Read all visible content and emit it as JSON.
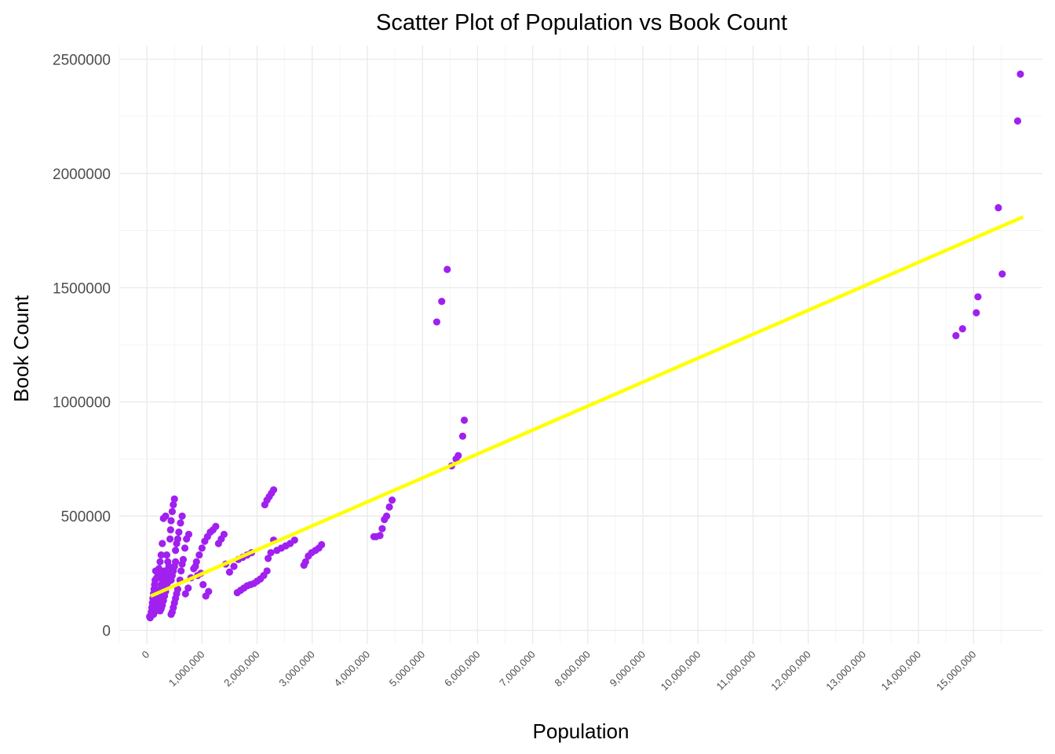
{
  "chart_data": {
    "type": "scatter",
    "title": "Scatter Plot of Population vs Book Count",
    "xlabel": "Population",
    "ylabel": "Book Count",
    "xlim": [
      -500000,
      16250000
    ],
    "ylim": [
      -60000,
      2560000
    ],
    "x_ticks": [
      {
        "value": 0,
        "label": "0"
      },
      {
        "value": 1000000,
        "label": "1,000,000"
      },
      {
        "value": 2000000,
        "label": "2,000,000"
      },
      {
        "value": 3000000,
        "label": "3,000,000"
      },
      {
        "value": 4000000,
        "label": "4,000,000"
      },
      {
        "value": 5000000,
        "label": "5,000,000"
      },
      {
        "value": 6000000,
        "label": "6,000,000"
      },
      {
        "value": 7000000,
        "label": "7,000,000"
      },
      {
        "value": 8000000,
        "label": "8,000,000"
      },
      {
        "value": 9000000,
        "label": "9,000,000"
      },
      {
        "value": 10000000,
        "label": "10,000,000"
      },
      {
        "value": 11000000,
        "label": "11,000,000"
      },
      {
        "value": 12000000,
        "label": "12,000,000"
      },
      {
        "value": 13000000,
        "label": "13,000,000"
      },
      {
        "value": 14000000,
        "label": "14,000,000"
      },
      {
        "value": 15000000,
        "label": "15,000,000"
      }
    ],
    "y_ticks": [
      {
        "value": 0,
        "label": "0"
      },
      {
        "value": 500000,
        "label": "500000"
      },
      {
        "value": 1000000,
        "label": "1000000"
      },
      {
        "value": 1500000,
        "label": "1500000"
      },
      {
        "value": 2000000,
        "label": "2000000"
      },
      {
        "value": 2500000,
        "label": "2500000"
      }
    ],
    "grid": true,
    "legend": "none",
    "point_color": "#a020f0",
    "fit_line_color": "#ffff00",
    "fit_line": {
      "x": [
        70000,
        15900000
      ],
      "y": [
        150000,
        1810000
      ]
    },
    "series": [
      {
        "points": [
          [
            5260000,
            1350000
          ],
          [
            5350000,
            1440000
          ],
          [
            5450000,
            1580000
          ],
          [
            5760000,
            920000
          ],
          [
            5730000,
            850000
          ],
          [
            5650000,
            765000
          ],
          [
            5610000,
            750000
          ],
          [
            5530000,
            720000
          ],
          [
            14680000,
            1290000
          ],
          [
            14800000,
            1320000
          ],
          [
            15050000,
            1390000
          ],
          [
            15080000,
            1460000
          ],
          [
            15450000,
            1850000
          ],
          [
            15520000,
            1560000
          ],
          [
            15800000,
            2230000
          ],
          [
            15850000,
            2435000
          ],
          [
            4450000,
            570000
          ],
          [
            4400000,
            540000
          ],
          [
            4350000,
            500000
          ],
          [
            4310000,
            485000
          ],
          [
            4270000,
            445000
          ],
          [
            4230000,
            415000
          ],
          [
            4160000,
            410000
          ],
          [
            4120000,
            410000
          ],
          [
            3170000,
            375000
          ],
          [
            3120000,
            360000
          ],
          [
            3060000,
            350000
          ],
          [
            2990000,
            340000
          ],
          [
            2930000,
            325000
          ],
          [
            2880000,
            300000
          ],
          [
            2850000,
            285000
          ],
          [
            2300000,
            615000
          ],
          [
            2260000,
            600000
          ],
          [
            2220000,
            585000
          ],
          [
            2180000,
            570000
          ],
          [
            2140000,
            550000
          ],
          [
            2680000,
            395000
          ],
          [
            2600000,
            380000
          ],
          [
            2520000,
            370000
          ],
          [
            2440000,
            360000
          ],
          [
            2360000,
            350000
          ],
          [
            2300000,
            395000
          ],
          [
            2250000,
            340000
          ],
          [
            2200000,
            315000
          ],
          [
            2180000,
            260000
          ],
          [
            2120000,
            240000
          ],
          [
            2060000,
            225000
          ],
          [
            2000000,
            215000
          ],
          [
            1940000,
            205000
          ],
          [
            1880000,
            200000
          ],
          [
            1820000,
            195000
          ],
          [
            1760000,
            185000
          ],
          [
            1700000,
            175000
          ],
          [
            1640000,
            165000
          ],
          [
            1900000,
            340000
          ],
          [
            1820000,
            330000
          ],
          [
            1740000,
            320000
          ],
          [
            1660000,
            310000
          ],
          [
            1580000,
            280000
          ],
          [
            1500000,
            255000
          ],
          [
            1430000,
            290000
          ],
          [
            1400000,
            420000
          ],
          [
            1350000,
            400000
          ],
          [
            1300000,
            380000
          ],
          [
            1250000,
            455000
          ],
          [
            1200000,
            440000
          ],
          [
            1150000,
            430000
          ],
          [
            1100000,
            410000
          ],
          [
            1050000,
            390000
          ],
          [
            1000000,
            360000
          ],
          [
            950000,
            330000
          ],
          [
            900000,
            300000
          ],
          [
            850000,
            270000
          ],
          [
            800000,
            230000
          ],
          [
            750000,
            185000
          ],
          [
            700000,
            160000
          ],
          [
            1120000,
            170000
          ],
          [
            1070000,
            150000
          ],
          [
            1020000,
            200000
          ],
          [
            980000,
            250000
          ],
          [
            920000,
            240000
          ],
          [
            880000,
            280000
          ],
          [
            640000,
            500000
          ],
          [
            610000,
            470000
          ],
          [
            580000,
            430000
          ],
          [
            560000,
            400000
          ],
          [
            540000,
            380000
          ],
          [
            520000,
            350000
          ],
          [
            760000,
            420000
          ],
          [
            720000,
            400000
          ],
          [
            690000,
            360000
          ],
          [
            660000,
            310000
          ],
          [
            640000,
            290000
          ],
          [
            620000,
            260000
          ],
          [
            600000,
            220000
          ],
          [
            500000,
            575000
          ],
          [
            480000,
            550000
          ],
          [
            460000,
            520000
          ],
          [
            440000,
            480000
          ],
          [
            430000,
            440000
          ],
          [
            420000,
            400000
          ],
          [
            420000,
            250000
          ],
          [
            400000,
            230000
          ],
          [
            380000,
            210000
          ],
          [
            360000,
            190000
          ],
          [
            340000,
            170000
          ],
          [
            320000,
            150000
          ],
          [
            300000,
            130000
          ],
          [
            280000,
            110000
          ],
          [
            260000,
            95000
          ],
          [
            240000,
            85000
          ],
          [
            340000,
            500000
          ],
          [
            300000,
            490000
          ],
          [
            280000,
            380000
          ],
          [
            260000,
            330000
          ],
          [
            240000,
            300000
          ],
          [
            220000,
            270000
          ],
          [
            200000,
            250000
          ],
          [
            180000,
            230000
          ],
          [
            160000,
            260000
          ],
          [
            150000,
            220000
          ],
          [
            140000,
            200000
          ],
          [
            130000,
            180000
          ],
          [
            120000,
            160000
          ],
          [
            110000,
            140000
          ],
          [
            100000,
            120000
          ],
          [
            90000,
            100000
          ],
          [
            80000,
            80000
          ],
          [
            70000,
            65000
          ],
          [
            60000,
            55000
          ],
          [
            50000,
            60000
          ],
          [
            520000,
            300000
          ],
          [
            500000,
            280000
          ],
          [
            480000,
            260000
          ],
          [
            460000,
            240000
          ],
          [
            440000,
            220000
          ],
          [
            560000,
            180000
          ],
          [
            540000,
            160000
          ],
          [
            520000,
            140000
          ],
          [
            500000,
            120000
          ],
          [
            480000,
            100000
          ],
          [
            460000,
            80000
          ],
          [
            440000,
            70000
          ],
          [
            360000,
            330000
          ],
          [
            380000,
            300000
          ],
          [
            400000,
            280000
          ],
          [
            320000,
            260000
          ],
          [
            300000,
            240000
          ],
          [
            280000,
            220000
          ],
          [
            260000,
            200000
          ],
          [
            240000,
            180000
          ],
          [
            220000,
            160000
          ],
          [
            200000,
            140000
          ],
          [
            180000,
            120000
          ],
          [
            160000,
            100000
          ],
          [
            140000,
            80000
          ],
          [
            120000,
            70000
          ]
        ]
      }
    ]
  }
}
